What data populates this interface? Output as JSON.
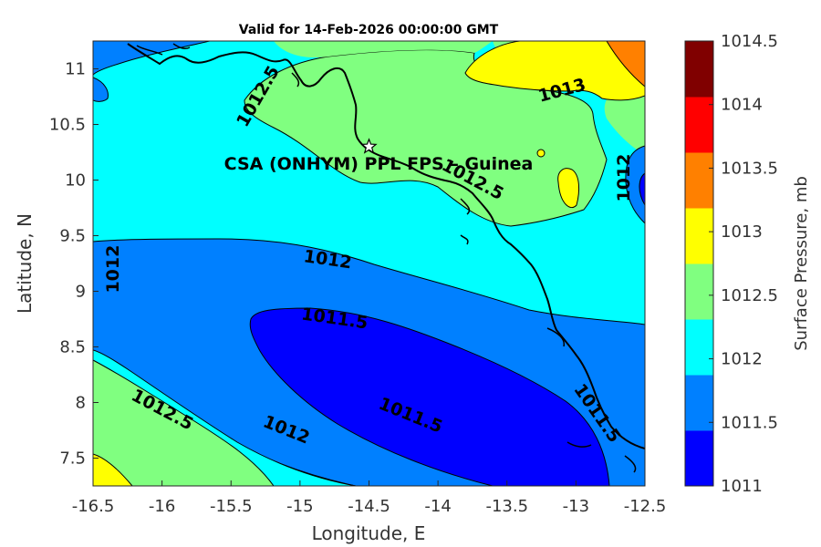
{
  "map": {
    "title": "Valid for 14-Feb-2026 00:00:00 GMT",
    "xlabel": "Longitude, E",
    "ylabel": "Latitude, N",
    "x_ticks": [
      "-16.5",
      "-16",
      "-15.5",
      "-15",
      "-14.5",
      "-14",
      "-13.5",
      "-13",
      "-12.5"
    ],
    "y_ticks": [
      "11",
      "10.5",
      "10",
      "9.5",
      "9",
      "8.5",
      "8",
      "7.5"
    ],
    "xlim": [
      -16.5,
      -12.5
    ],
    "ylim": [
      7.25,
      11.25
    ],
    "station": {
      "label": "CSA (ONHYM) PPL FPS  – Guinea",
      "lon": -14.5,
      "lat": 10.3
    },
    "contour_labels": [
      {
        "text": "1013",
        "lon": -13.1,
        "lat": 10.8
      },
      {
        "text": "1012.5",
        "lon": -15.3,
        "lat": 10.75
      },
      {
        "text": "1012.5",
        "lon": -13.75,
        "lat": 10.0
      },
      {
        "text": "1012",
        "lon": -12.65,
        "lat": 10.02
      },
      {
        "text": "1012",
        "lon": -14.8,
        "lat": 9.28
      },
      {
        "text": "1012",
        "lon": -16.35,
        "lat": 9.2
      },
      {
        "text": "1011.5",
        "lon": -14.75,
        "lat": 8.75
      },
      {
        "text": "1011.5",
        "lon": -14.2,
        "lat": 7.88
      },
      {
        "text": "1011.5",
        "lon": -12.85,
        "lat": 7.9
      },
      {
        "text": "1012.5",
        "lon": -16.0,
        "lat": 7.93
      },
      {
        "text": "1012",
        "lon": -15.1,
        "lat": 7.75
      }
    ],
    "colors": {
      "c1011": "#0000ff",
      "c1011_5": "#0080ff",
      "c1012": "#00ffff",
      "c1012_5": "#80ff80",
      "c1013": "#ffff00",
      "c1013_5": "#ff8000",
      "c1014": "#ff0000",
      "c1014_5": "#800000"
    }
  },
  "colorbar": {
    "label": "Surface Pressure, mb",
    "levels": [
      "1011",
      "1011.5",
      "1012",
      "1012.5",
      "1013",
      "1013.5",
      "1014",
      "1014.5"
    ],
    "colors": [
      "#0000ff",
      "#0080ff",
      "#00ffff",
      "#80ff80",
      "#ffff00",
      "#ff8000",
      "#ff0000",
      "#800000"
    ]
  }
}
